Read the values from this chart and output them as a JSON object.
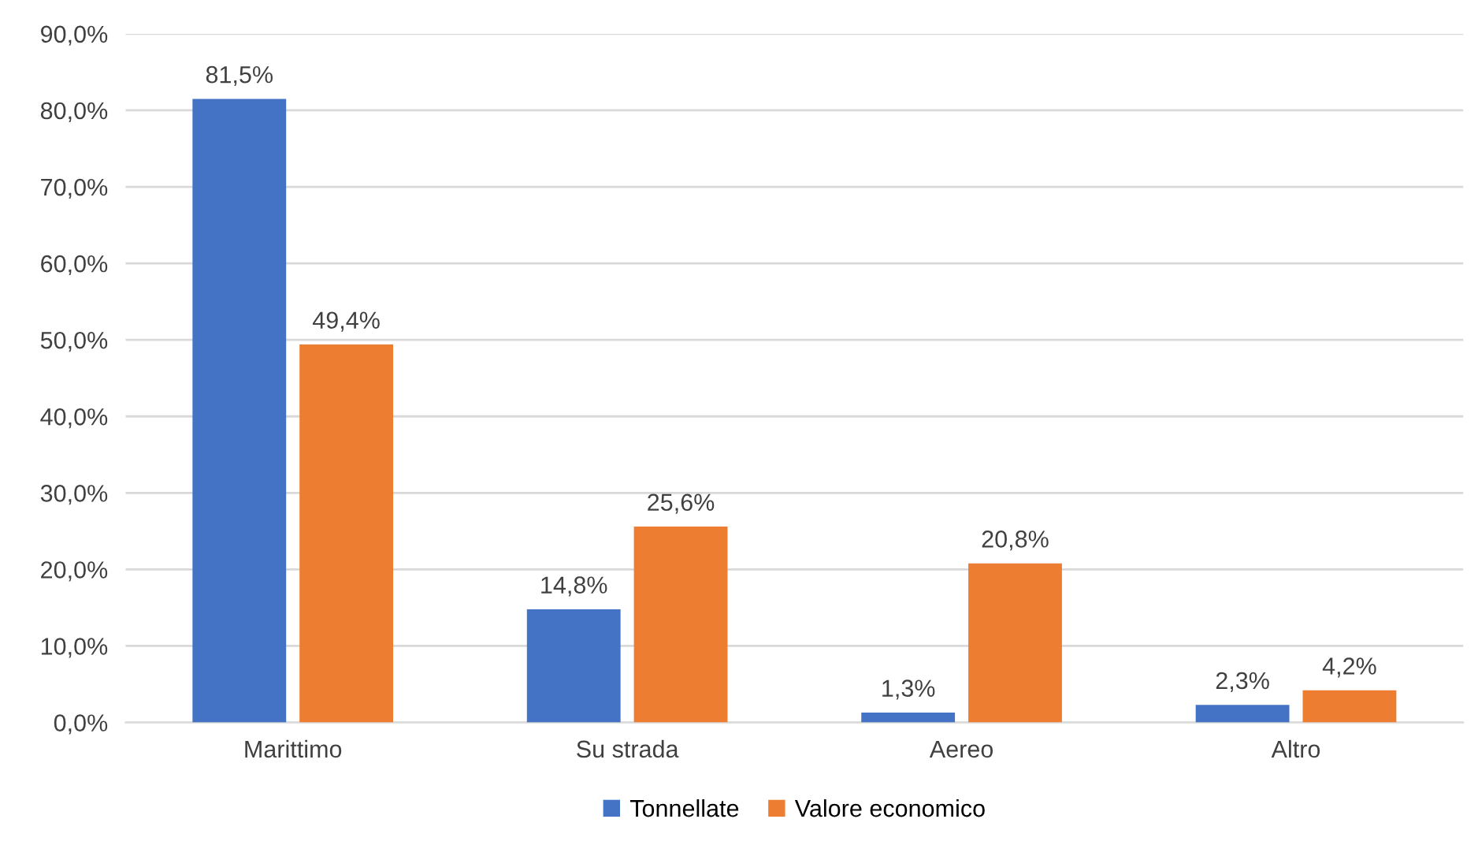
{
  "chart_data": {
    "type": "bar",
    "categories": [
      "Marittimo",
      "Su strada",
      "Aereo",
      "Altro"
    ],
    "series": [
      {
        "name": "Tonnellate",
        "color": "#4472c4",
        "values": [
          81.5,
          14.8,
          1.3,
          2.3
        ],
        "value_labels": [
          "81,5%",
          "14,8%",
          "1,3%",
          "2,3%"
        ]
      },
      {
        "name": "Valore economico",
        "color": "#ed7d31",
        "values": [
          49.4,
          25.6,
          20.8,
          4.2
        ],
        "value_labels": [
          "49,4%",
          "25,6%",
          "20,8%",
          "4,2%"
        ]
      }
    ],
    "ylim": [
      0,
      90
    ],
    "yticks": [
      {
        "value": 0,
        "label": "0,0%"
      },
      {
        "value": 10,
        "label": "10,0%"
      },
      {
        "value": 20,
        "label": "20,0%"
      },
      {
        "value": 30,
        "label": "30,0%"
      },
      {
        "value": 40,
        "label": "40,0%"
      },
      {
        "value": 50,
        "label": "50,0%"
      },
      {
        "value": 60,
        "label": "60,0%"
      },
      {
        "value": 70,
        "label": "70,0%"
      },
      {
        "value": 80,
        "label": "80,0%"
      },
      {
        "value": 90,
        "label": "90,0%"
      }
    ],
    "grid": "y",
    "legend": "bottom"
  }
}
